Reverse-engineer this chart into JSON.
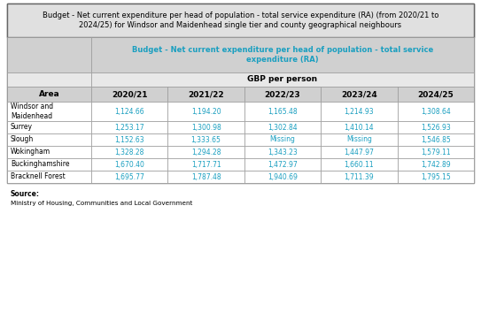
{
  "title": "Budget - Net current expenditure per head of population - total service expenditure (RA) (from 2020/21 to\n2024/25) for Windsor and Maidenhead single tier and county geographical neighbours",
  "col_header_line1": "Budget - Net current expenditure per head of population - total service",
  "col_header_line2": "expenditure (RA)",
  "subheader": "GBP per person",
  "columns": [
    "Area",
    "2020/21",
    "2021/22",
    "2022/23",
    "2023/24",
    "2024/25"
  ],
  "rows": [
    [
      "Windsor and\nMaidenhead",
      "1,124.66",
      "1,194.20",
      "1,165.48",
      "1,214.93",
      "1,308.64"
    ],
    [
      "Surrey",
      "1,253.17",
      "1,300.98",
      "1,302.84",
      "1,410.14",
      "1,526.93"
    ],
    [
      "Slough",
      "1,152.63",
      "1,333.65",
      "Missing",
      "Missing",
      "1,546.85"
    ],
    [
      "Wokingham",
      "1,328.28",
      "1,294.28",
      "1,343.23",
      "1,447.97",
      "1,579.11"
    ],
    [
      "Buckinghamshire",
      "1,670.40",
      "1,717.71",
      "1,472.97",
      "1,660.11",
      "1,742.89"
    ],
    [
      "Bracknell Forest",
      "1,695.77",
      "1,787.48",
      "1,940.69",
      "1,711.39",
      "1,795.15"
    ]
  ],
  "source_label": "Source:",
  "source_text": "Ministry of Housing, Communities and Local Government",
  "title_bg": "#e0e0e0",
  "col_header_bg": "#d0d0d0",
  "subheader_bg": "#e8e8e8",
  "header_row_bg": "#d0d0d0",
  "data_bg": "#ffffff",
  "col_header_color": "#1a9fc0",
  "data_color": "#1a9fc0",
  "border_color": "#999999",
  "outer_border_color": "#666666",
  "title_fontsize": 6.0,
  "header_fontsize": 6.0,
  "data_fontsize": 5.5
}
